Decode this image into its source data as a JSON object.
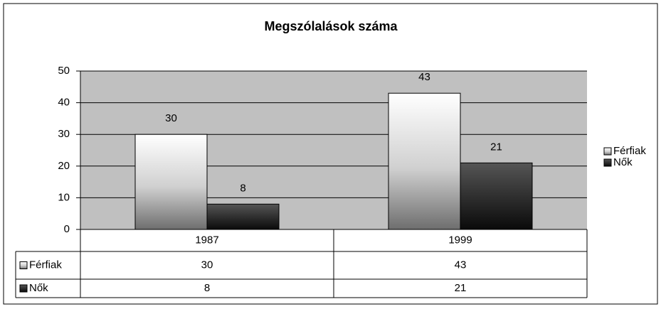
{
  "chart_data": {
    "type": "bar",
    "title": "Megszólalások száma",
    "categories": [
      "1987",
      "1999"
    ],
    "series": [
      {
        "name": "Férfiak",
        "color": "#ffffff",
        "values": [
          30,
          43
        ]
      },
      {
        "name": "Nők",
        "color": "#1a1a1a",
        "values": [
          8,
          21
        ]
      }
    ],
    "ylim": [
      0,
      50
    ],
    "yticks": [
      0,
      10,
      20,
      30,
      40,
      50
    ],
    "grid": true,
    "legend": "right",
    "data_table": true
  }
}
